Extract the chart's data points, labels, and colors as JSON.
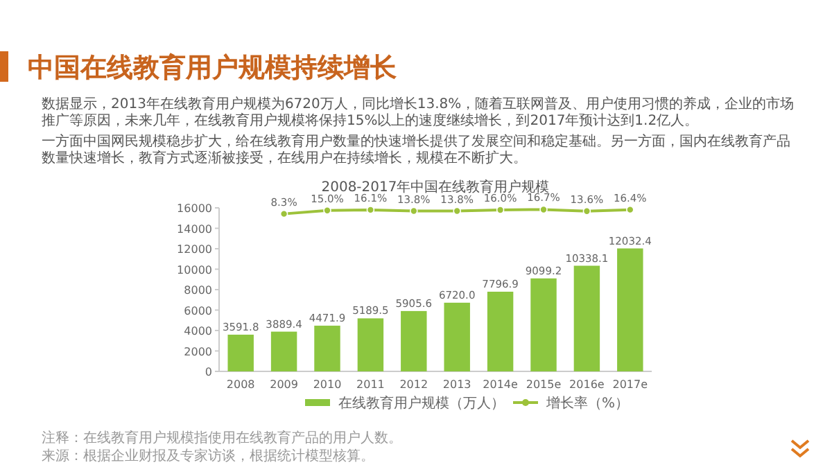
{
  "chart_data": {
    "type": "bar",
    "title": "2008-2017年中国在线教育用户规模",
    "annotations": [
      "中国在线教育用户规模持续增长",
      "数据显示，2013年在线教育用户规模为6720万人，同比增长13.8%，随着互联网普及、用户使用习惯的养成，企业的市场推广等原因，未来几年，在线教育用户规模将保持15%以上的速度继续增长，到2017年预计达到1.2亿人。",
      "一方面中国网民规模稳步扩大，给在线教育用户数量的快速增长提供了发展空间和稳定基础。另一方面，国内在线教育产品数量快速增长，教育方式逐渐被接受，在线用户在持续增长，规模在不断扩大。",
      "注释：在线教育用户规模指使用在线教育产品的用户人数。",
      "来源：根据企业财报及专家访谈，根据统计模型核算。"
    ],
    "categories": [
      "2008",
      "2009",
      "2010",
      "2011",
      "2012",
      "2013",
      "2014e",
      "2015e",
      "2016e",
      "2017e"
    ],
    "series": [
      {
        "name": "在线教育用户规模（万人）",
        "color": "#8cc63f",
        "values": [
          3591.8,
          3889.4,
          4471.9,
          5189.5,
          5905.6,
          6720.0,
          7796.9,
          9099.2,
          10338.1,
          12032.4
        ],
        "value_labels": [
          "3591.8",
          "3889.4",
          "4471.9",
          "5189.5",
          "5905.6",
          "6720.0",
          "7796.9",
          "9099.2",
          "10338.1",
          "12032.4"
        ]
      },
      {
        "name": "增长率（%）",
        "type": "line",
        "axis": "y2",
        "color": "#9dc23a",
        "values": [
          null,
          8.3,
          15.0,
          16.1,
          13.8,
          13.8,
          16.0,
          16.7,
          13.6,
          16.4
        ],
        "value_labels": [
          null,
          "8.3%",
          "15.0%",
          "16.1%",
          "13.8%",
          "13.8%",
          "16.0%",
          "16.7%",
          "13.6%",
          "16.4%"
        ]
      }
    ],
    "ylim": [
      0,
      16000
    ],
    "yticks": [
      0,
      2000,
      4000,
      6000,
      8000,
      10000,
      12000,
      14000,
      16000
    ],
    "y2lim": [
      -300,
      20
    ],
    "tick_labels": "xy",
    "legend": "bottom",
    "marker": "circle",
    "grid": false
  }
}
